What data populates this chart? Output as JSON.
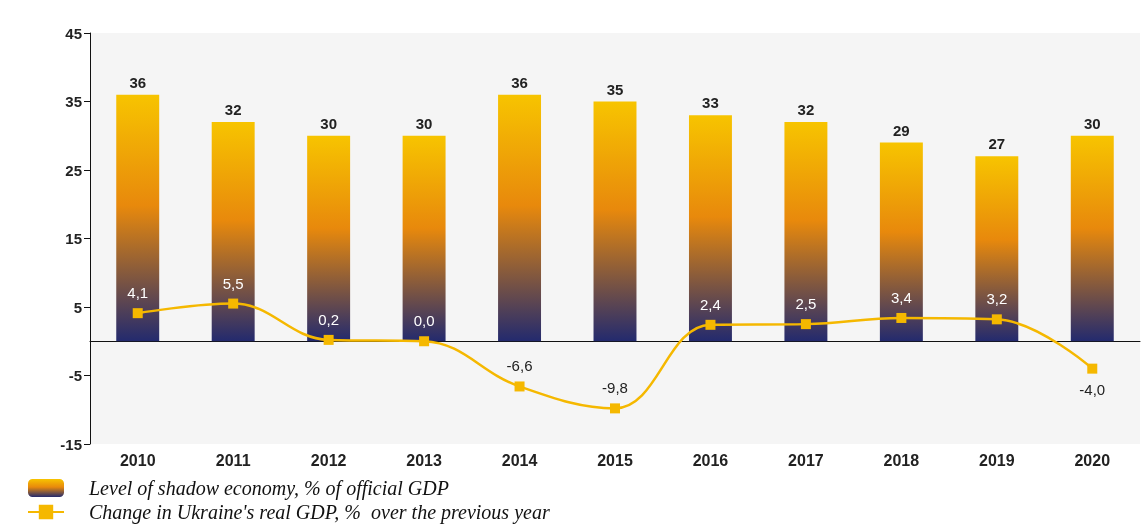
{
  "chart_data": {
    "type": "bar",
    "categories": [
      "2010",
      "2011",
      "2012",
      "2013",
      "2014",
      "2015",
      "2016",
      "2017",
      "2018",
      "2019",
      "2020"
    ],
    "series": [
      {
        "name": "Level of shadow economy, % of official GDP",
        "color": "#e8890c",
        "values": [
          36,
          32,
          30,
          30,
          36,
          35,
          33,
          32,
          29,
          27,
          30
        ],
        "data_labels": true
      },
      {
        "name": "Change in Ukraine's real GDP, %  over the previous year",
        "type": "line",
        "color": "#f5b800",
        "values": [
          4.1,
          5.5,
          0.2,
          0.0,
          -6.6,
          -9.8,
          2.4,
          2.5,
          3.4,
          3.2,
          -4.0
        ],
        "value_labels": [
          "4,1",
          "5,5",
          "0,2",
          "0,0",
          "-6,6",
          "-9,8",
          "2,4",
          "2,5",
          "3,4",
          "3,2",
          "-4,0"
        ],
        "marker": "square"
      }
    ],
    "ylim": [
      -15,
      45
    ],
    "yticks": [
      -15,
      -5,
      5,
      15,
      25,
      35,
      45
    ],
    "legend": "bottom left"
  }
}
